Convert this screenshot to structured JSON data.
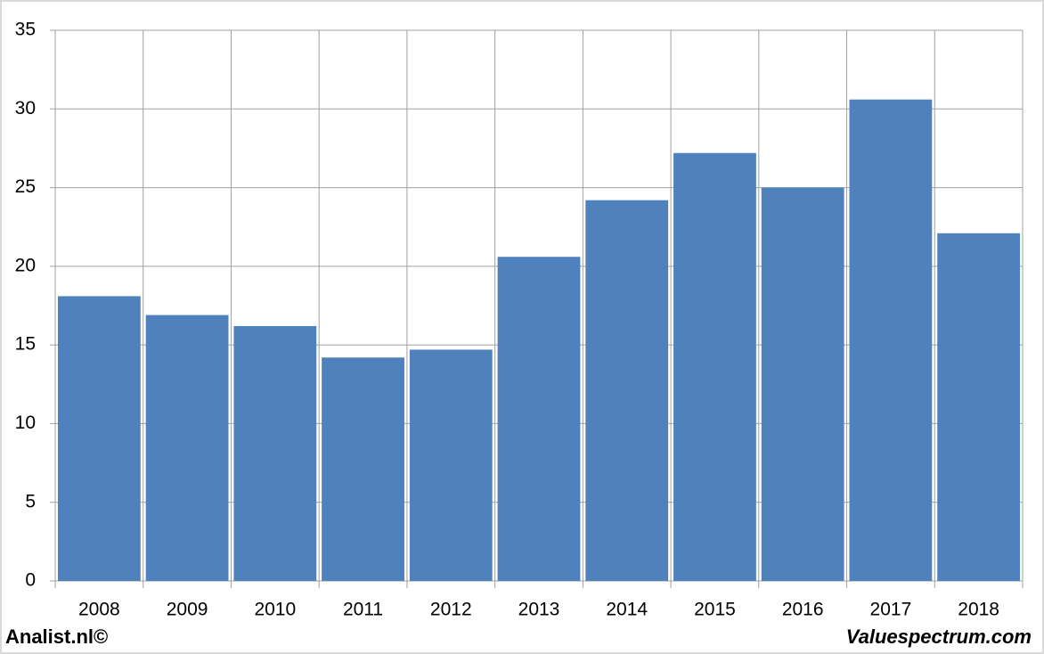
{
  "chart_data": {
    "type": "bar",
    "categories": [
      "2008",
      "2009",
      "2010",
      "2011",
      "2012",
      "2013",
      "2014",
      "2015",
      "2016",
      "2017",
      "2018"
    ],
    "values": [
      18.1,
      16.9,
      16.2,
      14.2,
      14.7,
      20.6,
      24.2,
      27.2,
      25.0,
      30.6,
      22.1
    ],
    "color": "#4f81bd",
    "ylim": [
      0,
      35
    ],
    "yticks": [
      0,
      5,
      10,
      15,
      20,
      25,
      30,
      35
    ],
    "grid": true
  },
  "footer": {
    "left": "Analist.nl©",
    "right": "Valuespectrum.com"
  }
}
